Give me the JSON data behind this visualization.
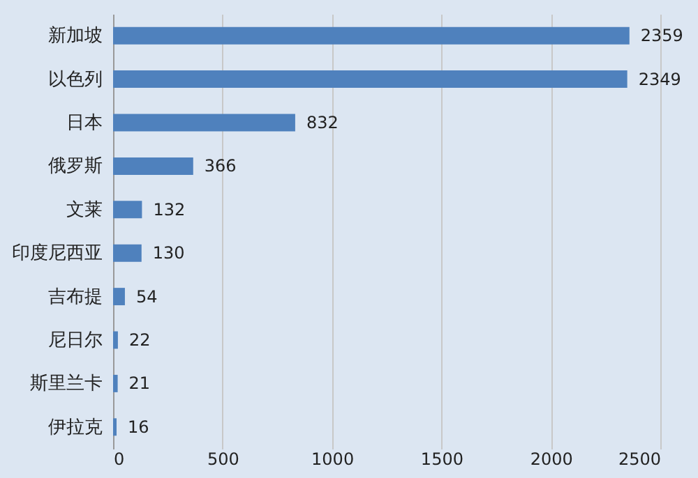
{
  "chart_data": {
    "type": "bar",
    "orientation": "horizontal",
    "categories": [
      "新加坡",
      "以色列",
      "日本",
      "俄罗斯",
      "文莱",
      "印度尼西亚",
      "吉布提",
      "尼日尔",
      "斯里兰卡",
      "伊拉克"
    ],
    "values": [
      2359,
      2349,
      832,
      366,
      132,
      130,
      54,
      22,
      21,
      16
    ],
    "color": "#4f81bd",
    "xlim": [
      0,
      2500
    ],
    "xticks": [
      0,
      500,
      1000,
      1500,
      2000,
      2500
    ],
    "grid": "x",
    "data_labels": true
  }
}
